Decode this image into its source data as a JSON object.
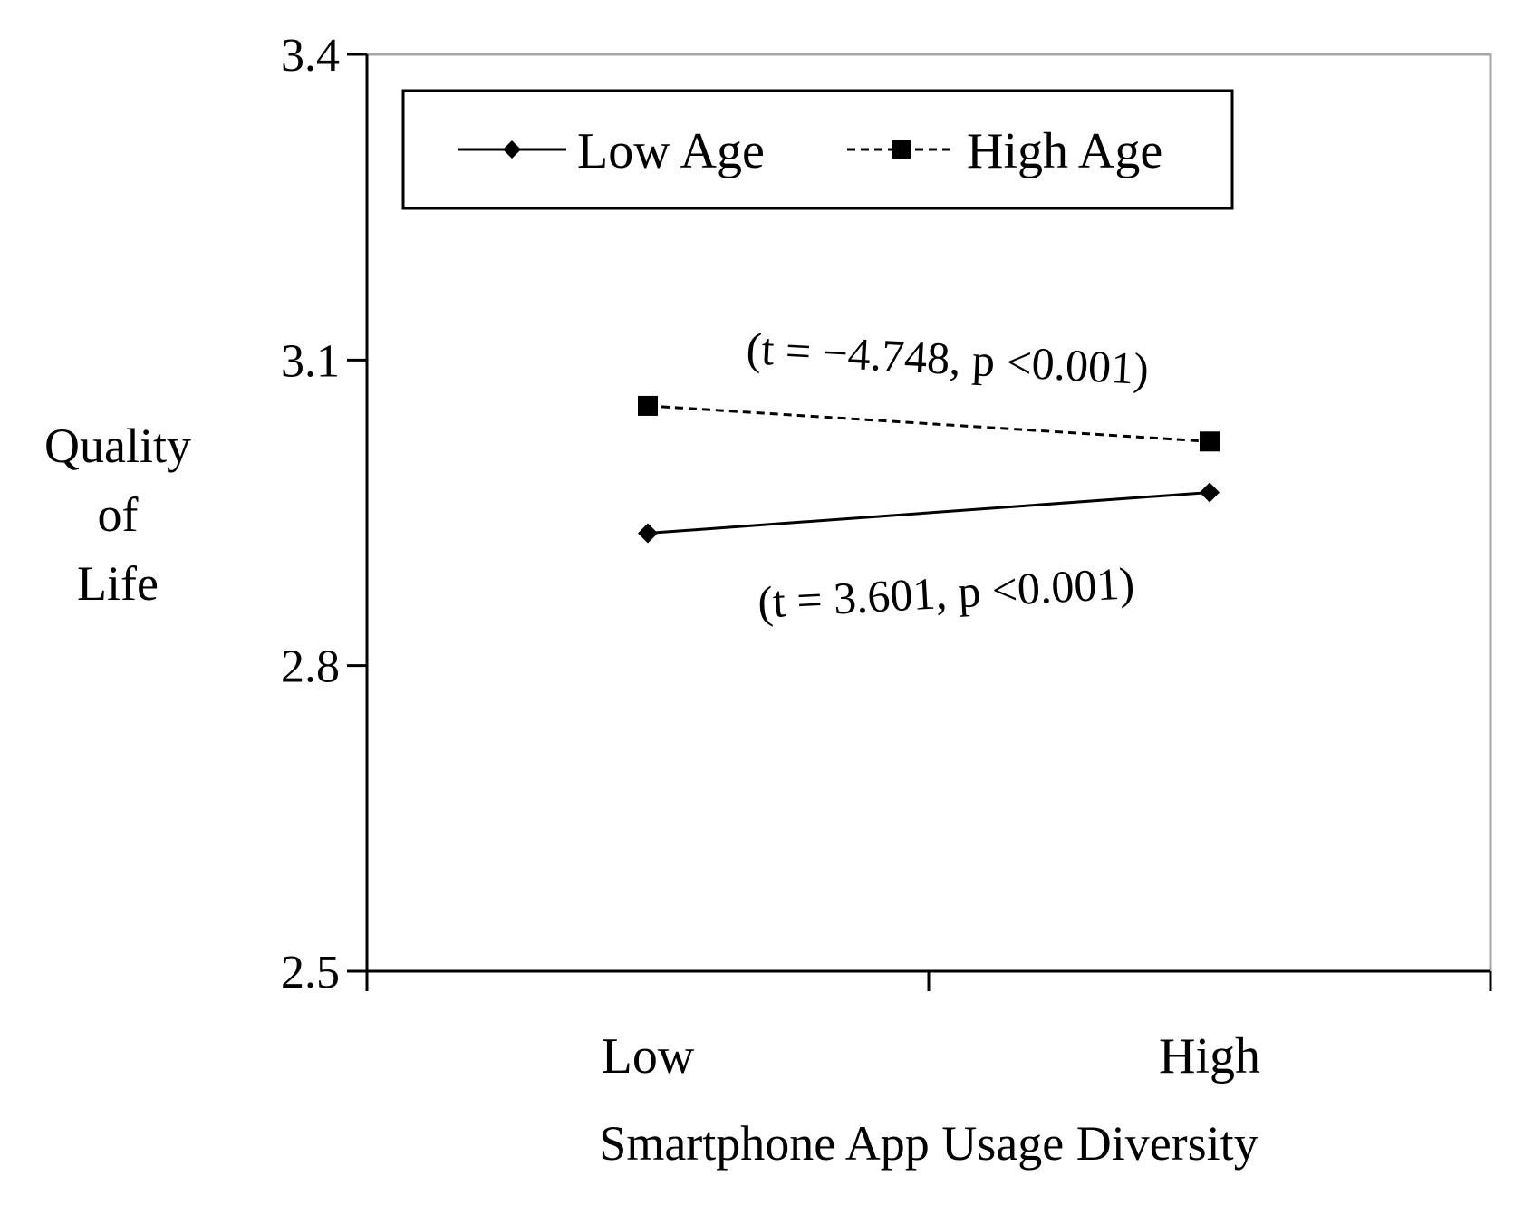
{
  "chart_data": {
    "type": "line",
    "categories": [
      "Low",
      "High"
    ],
    "series": [
      {
        "name": "Low Age",
        "values": [
          2.93,
          2.97
        ],
        "line_style": "solid",
        "marker": "diamond"
      },
      {
        "name": "High Age",
        "values": [
          3.055,
          3.02
        ],
        "line_style": "dashed",
        "marker": "square"
      }
    ],
    "xlabel": "Smartphone App Usage Diversity",
    "ylabel_lines": [
      "Quality",
      "of",
      "Life"
    ],
    "ylim": [
      2.5,
      3.4
    ],
    "yticks": [
      2.5,
      2.8,
      3.1,
      3.4
    ],
    "ytick_labels": [
      "2.5",
      "2.8",
      "3.1",
      "3.4"
    ],
    "grid": false,
    "legend_position": "top",
    "annotations": [
      {
        "series": "High Age",
        "text": "(t = −4.748, p <0.001)",
        "placement": "above-line",
        "rotation_deg": 3
      },
      {
        "series": "Low Age",
        "text": "(t = 3.601, p <0.001)",
        "placement": "below-line",
        "rotation_deg": -3
      }
    ],
    "colors": {
      "axis": "#000000",
      "frame": "#a6a6a6",
      "series": "#000000"
    }
  }
}
